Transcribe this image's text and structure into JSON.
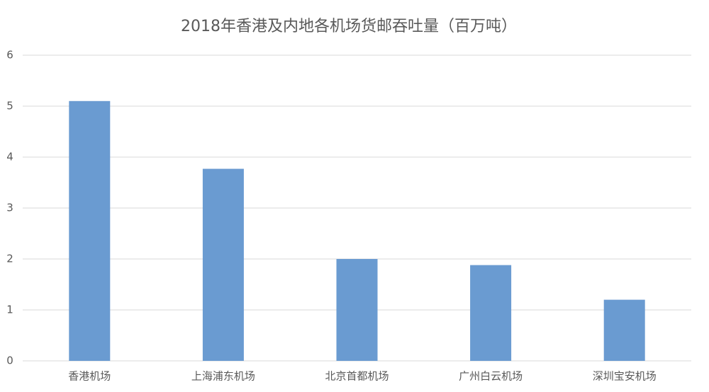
{
  "chart_data": {
    "type": "bar",
    "title": "2018年香港及内地各机场货邮吞吐量（百万吨）",
    "categories": [
      "香港机场",
      "上海浦东机场",
      "北京首都机场",
      "广州白云机场",
      "深圳宝安机场"
    ],
    "values": [
      5.1,
      3.77,
      2.0,
      1.88,
      1.2
    ],
    "color": "#6a9bd1",
    "ylim": [
      0,
      6
    ],
    "yticks": [
      0,
      1,
      2,
      3,
      4,
      5,
      6
    ],
    "grid": true
  }
}
